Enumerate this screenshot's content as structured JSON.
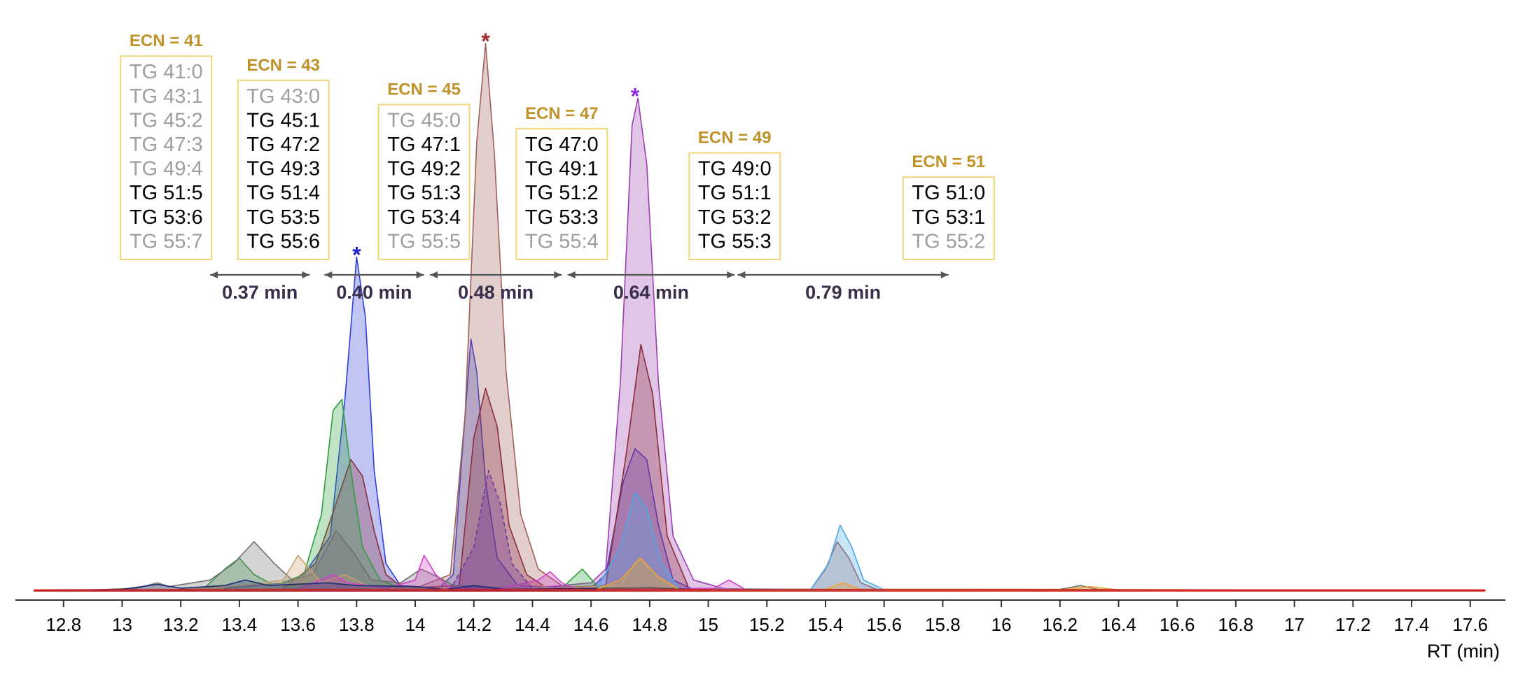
{
  "colors": {
    "ecn_title": "#C0922A",
    "box_border": "#F2D57A",
    "tg_active": "#000000",
    "tg_inactive": "#9E9E9E",
    "arrow": "#555555",
    "gap_label": "#3A2E4A"
  },
  "chart_data": {
    "type": "area",
    "title": "",
    "xlabel": "RT (min)",
    "ylabel": "",
    "xlim": [
      12.65,
      17.72
    ],
    "ylim": [
      0,
      100
    ],
    "x_ticks": [
      "12.8",
      "13",
      "13.2",
      "13.4",
      "13.6",
      "13.8",
      "14",
      "14.2",
      "14.4",
      "14.6",
      "14.8",
      "15",
      "15.2",
      "15.4",
      "15.6",
      "15.8",
      "16",
      "16.2",
      "16.4",
      "16.6",
      "16.8",
      "17",
      "17.2",
      "17.4",
      "17.6"
    ],
    "ecn_groups": [
      {
        "title": "ECN = 41",
        "center": 13.15,
        "label_y": 90,
        "species": [
          {
            "name": "TG 41:0",
            "active": false
          },
          {
            "name": "TG 43:1",
            "active": false
          },
          {
            "name": "TG 45:2",
            "active": false
          },
          {
            "name": "TG 47:3",
            "active": false
          },
          {
            "name": "TG 49:4",
            "active": false
          },
          {
            "name": "TG 51:5",
            "active": true
          },
          {
            "name": "TG 53:6",
            "active": true
          },
          {
            "name": "TG 55:7",
            "active": false
          }
        ]
      },
      {
        "title": "ECN = 43",
        "center": 13.55,
        "label_y": 84,
        "species": [
          {
            "name": "TG 43:0",
            "active": false
          },
          {
            "name": "TG 45:1",
            "active": true
          },
          {
            "name": "TG 47:2",
            "active": true
          },
          {
            "name": "TG 49:3",
            "active": true
          },
          {
            "name": "TG 51:4",
            "active": true
          },
          {
            "name": "TG 53:5",
            "active": true
          },
          {
            "name": "TG 55:6",
            "active": true
          }
        ]
      },
      {
        "title": "ECN = 45",
        "center": 14.03,
        "label_y": 80,
        "species": [
          {
            "name": "TG 45:0",
            "active": false
          },
          {
            "name": "TG 47:1",
            "active": true
          },
          {
            "name": "TG 49:2",
            "active": true
          },
          {
            "name": "TG 51:3",
            "active": true
          },
          {
            "name": "TG 53:4",
            "active": true
          },
          {
            "name": "TG 55:5",
            "active": false
          }
        ]
      },
      {
        "title": "ECN = 47",
        "center": 14.5,
        "label_y": 75,
        "species": [
          {
            "name": "TG 47:0",
            "active": true
          },
          {
            "name": "TG 49:1",
            "active": true
          },
          {
            "name": "TG 51:2",
            "active": true
          },
          {
            "name": "TG 53:3",
            "active": true
          },
          {
            "name": "TG 55:4",
            "active": false
          }
        ]
      },
      {
        "title": "ECN = 49",
        "center": 15.09,
        "label_y": 70,
        "species": [
          {
            "name": "TG 49:0",
            "active": true
          },
          {
            "name": "TG 51:1",
            "active": true
          },
          {
            "name": "TG 53:2",
            "active": true
          },
          {
            "name": "TG 55:3",
            "active": true
          }
        ]
      },
      {
        "title": "ECN = 51",
        "center": 15.82,
        "label_y": 66,
        "species": [
          {
            "name": "TG 51:0",
            "active": true
          },
          {
            "name": "TG 53:1",
            "active": true
          },
          {
            "name": "TG 55:2",
            "active": false
          }
        ]
      }
    ],
    "gaps": [
      {
        "label": "0.37 min",
        "from": 13.3,
        "to": 13.64
      },
      {
        "label": "0.40 min",
        "from": 13.69,
        "to": 14.03
      },
      {
        "label": "0.48 min",
        "from": 14.05,
        "to": 14.5
      },
      {
        "label": "0.64 min",
        "from": 14.52,
        "to": 15.09
      },
      {
        "label": "0.79 min",
        "from": 15.1,
        "to": 15.82
      }
    ],
    "marked_peaks": [
      {
        "rt": 13.8,
        "color": "#1F1FCC"
      },
      {
        "rt": 14.24,
        "color": "#A52A2A"
      },
      {
        "rt": 14.75,
        "color": "#8A2BE2"
      }
    ],
    "series": [
      {
        "name": "trace-blue",
        "color": "#2E3FD8",
        "points": [
          [
            13.35,
            0.5
          ],
          [
            13.56,
            1.5
          ],
          [
            13.62,
            3
          ],
          [
            13.71,
            10
          ],
          [
            13.76,
            35
          ],
          [
            13.8,
            61
          ],
          [
            13.83,
            50
          ],
          [
            13.86,
            22
          ],
          [
            13.9,
            5
          ],
          [
            13.95,
            1
          ],
          [
            14.08,
            0.5
          ],
          [
            14.13,
            3
          ],
          [
            14.16,
            25
          ],
          [
            14.19,
            46
          ],
          [
            14.21,
            40
          ],
          [
            14.24,
            20
          ],
          [
            14.28,
            6
          ],
          [
            14.35,
            1
          ],
          [
            14.6,
            0.5
          ],
          [
            14.65,
            3
          ],
          [
            14.71,
            20
          ],
          [
            14.75,
            26
          ],
          [
            14.79,
            24
          ],
          [
            14.83,
            12
          ],
          [
            14.88,
            2
          ],
          [
            14.95,
            0.3
          ]
        ]
      },
      {
        "name": "trace-brown",
        "color": "#A0605A",
        "points": [
          [
            14.0,
            0.5
          ],
          [
            14.12,
            3
          ],
          [
            14.17,
            32
          ],
          [
            14.21,
            82
          ],
          [
            14.24,
            100
          ],
          [
            14.27,
            80
          ],
          [
            14.31,
            40
          ],
          [
            14.36,
            14
          ],
          [
            14.42,
            4
          ],
          [
            14.5,
            1
          ],
          [
            14.6,
            0.2
          ],
          [
            15.35,
            0.3
          ],
          [
            15.4,
            4
          ],
          [
            15.44,
            9
          ],
          [
            15.48,
            6
          ],
          [
            15.52,
            1.5
          ],
          [
            15.58,
            0.2
          ]
        ]
      },
      {
        "name": "trace-purple",
        "color": "#9A3FB0",
        "points": [
          [
            14.4,
            0.5
          ],
          [
            14.6,
            1.5
          ],
          [
            14.65,
            4
          ],
          [
            14.7,
            38
          ],
          [
            14.74,
            85
          ],
          [
            14.76,
            90
          ],
          [
            14.79,
            78
          ],
          [
            14.83,
            38
          ],
          [
            14.88,
            10
          ],
          [
            14.95,
            2
          ],
          [
            15.05,
            0.5
          ],
          [
            15.1,
            0.1
          ]
        ]
      },
      {
        "name": "trace-maroon",
        "color": "#8B2C3C",
        "points": [
          [
            13.55,
            0.5
          ],
          [
            13.66,
            5
          ],
          [
            13.73,
            16
          ],
          [
            13.78,
            24
          ],
          [
            13.82,
            21
          ],
          [
            13.86,
            11
          ],
          [
            13.9,
            3
          ],
          [
            13.96,
            0.5
          ],
          [
            14.15,
            1
          ],
          [
            14.2,
            28
          ],
          [
            14.24,
            37
          ],
          [
            14.28,
            30
          ],
          [
            14.32,
            12
          ],
          [
            14.38,
            3
          ],
          [
            14.45,
            0.5
          ],
          [
            14.65,
            1
          ],
          [
            14.72,
            25
          ],
          [
            14.77,
            45
          ],
          [
            14.81,
            36
          ],
          [
            14.86,
            10
          ],
          [
            14.93,
            1
          ]
        ]
      },
      {
        "name": "trace-green",
        "color": "#2E9E3E",
        "points": [
          [
            13.28,
            0.5
          ],
          [
            13.35,
            4
          ],
          [
            13.4,
            6
          ],
          [
            13.45,
            3
          ],
          [
            13.52,
            1
          ],
          [
            13.62,
            3
          ],
          [
            13.68,
            14
          ],
          [
            13.72,
            33
          ],
          [
            13.75,
            35
          ],
          [
            13.78,
            22
          ],
          [
            13.82,
            8
          ],
          [
            13.88,
            2
          ],
          [
            13.95,
            0.5
          ],
          [
            14.5,
            0.5
          ],
          [
            14.57,
            4
          ],
          [
            14.62,
            1
          ],
          [
            14.7,
            0.2
          ]
        ]
      },
      {
        "name": "trace-gray",
        "color": "#6F6F6F",
        "points": [
          [
            12.9,
            0.2
          ],
          [
            13.05,
            0.5
          ],
          [
            13.12,
            1.5
          ],
          [
            13.16,
            0.8
          ],
          [
            13.3,
            2
          ],
          [
            13.38,
            5
          ],
          [
            13.45,
            9
          ],
          [
            13.52,
            5
          ],
          [
            13.58,
            2
          ],
          [
            13.65,
            3
          ],
          [
            13.73,
            11
          ],
          [
            13.79,
            7
          ],
          [
            13.85,
            2
          ],
          [
            13.95,
            1.5
          ],
          [
            14.02,
            4
          ],
          [
            14.08,
            2.5
          ],
          [
            14.13,
            1
          ],
          [
            14.5,
            0.3
          ],
          [
            15.0,
            0.3
          ],
          [
            16.2,
            0.3
          ],
          [
            16.27,
            1
          ],
          [
            16.33,
            0.3
          ],
          [
            16.5,
            0.1
          ]
        ]
      },
      {
        "name": "trace-tan",
        "color": "#C8A070",
        "points": [
          [
            13.2,
            0.3
          ],
          [
            13.42,
            1
          ],
          [
            13.55,
            2
          ],
          [
            13.6,
            6.5
          ],
          [
            13.64,
            4
          ],
          [
            13.68,
            1.5
          ],
          [
            13.76,
            3
          ],
          [
            13.85,
            0.5
          ],
          [
            14.3,
            0.5
          ],
          [
            14.4,
            1.5
          ],
          [
            14.46,
            0.5
          ],
          [
            14.7,
            1
          ],
          [
            14.76,
            6
          ],
          [
            14.82,
            3
          ],
          [
            14.9,
            0.3
          ]
        ]
      },
      {
        "name": "trace-lightblue",
        "color": "#4BA8E8",
        "points": [
          [
            14.62,
            0.5
          ],
          [
            14.7,
            8
          ],
          [
            14.75,
            18
          ],
          [
            14.79,
            15
          ],
          [
            14.84,
            5
          ],
          [
            14.9,
            0.5
          ],
          [
            15.35,
            0.3
          ],
          [
            15.41,
            5
          ],
          [
            15.45,
            12
          ],
          [
            15.49,
            8
          ],
          [
            15.53,
            2
          ],
          [
            15.6,
            0.2
          ]
        ]
      },
      {
        "name": "trace-magenta",
        "color": "#D040C8",
        "points": [
          [
            13.6,
            0.3
          ],
          [
            13.72,
            3
          ],
          [
            13.77,
            1.5
          ],
          [
            13.9,
            0.5
          ],
          [
            14.0,
            2
          ],
          [
            14.03,
            6.5
          ],
          [
            14.07,
            3
          ],
          [
            14.12,
            0.5
          ],
          [
            14.3,
            0.5
          ],
          [
            14.42,
            2
          ],
          [
            14.46,
            3.5
          ],
          [
            14.5,
            1.5
          ],
          [
            14.55,
            0.3
          ],
          [
            15.02,
            0.5
          ],
          [
            15.07,
            2
          ],
          [
            15.12,
            0.5
          ]
        ]
      },
      {
        "name": "trace-purple-dashed",
        "color": "#7030A0",
        "points": [
          [
            14.12,
            0.3
          ],
          [
            14.2,
            8
          ],
          [
            14.25,
            22
          ],
          [
            14.29,
            16
          ],
          [
            14.33,
            5
          ],
          [
            14.4,
            0.5
          ]
        ]
      },
      {
        "name": "trace-darkblue",
        "color": "#1F2E6E",
        "points": [
          [
            12.7,
            0.1
          ],
          [
            13.0,
            0.3
          ],
          [
            13.12,
            1.2
          ],
          [
            13.2,
            0.5
          ],
          [
            13.35,
            1
          ],
          [
            13.42,
            2
          ],
          [
            13.5,
            1
          ],
          [
            13.7,
            1.5
          ],
          [
            13.8,
            1
          ],
          [
            14.0,
            0.8
          ],
          [
            14.1,
            0.3
          ],
          [
            14.2,
            1
          ],
          [
            14.3,
            0.3
          ],
          [
            14.8,
            0.6
          ],
          [
            15.0,
            0.2
          ]
        ]
      },
      {
        "name": "trace-orange",
        "color": "#F0A030",
        "points": [
          [
            14.62,
            0.3
          ],
          [
            14.7,
            2
          ],
          [
            14.77,
            6
          ],
          [
            14.83,
            2.5
          ],
          [
            14.9,
            0.3
          ],
          [
            15.4,
            0.3
          ],
          [
            15.46,
            1.5
          ],
          [
            15.52,
            0.3
          ],
          [
            16.2,
            0.2
          ],
          [
            16.3,
            0.8
          ],
          [
            16.4,
            0.2
          ],
          [
            17.6,
            0.2
          ],
          [
            17.65,
            0.1
          ]
        ]
      },
      {
        "name": "trace-red",
        "color": "#D02020",
        "points": [
          [
            12.7,
            0.2
          ],
          [
            13.5,
            0.3
          ],
          [
            14.2,
            0.3
          ],
          [
            14.8,
            0.3
          ],
          [
            15.4,
            0.3
          ],
          [
            16.0,
            0.3
          ],
          [
            16.8,
            0.2
          ],
          [
            17.65,
            0.2
          ]
        ]
      }
    ]
  }
}
